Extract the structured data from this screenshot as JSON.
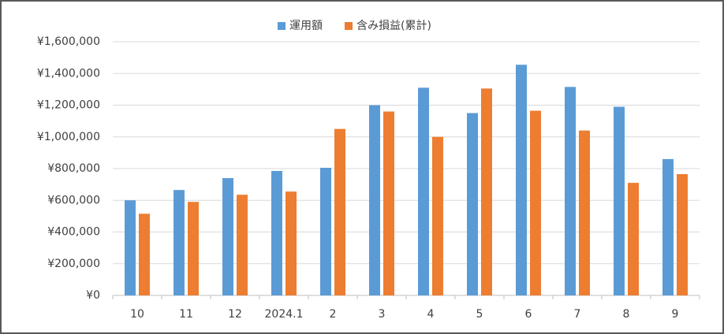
{
  "chart_data": {
    "type": "bar",
    "categories": [
      "10",
      "11",
      "12",
      "2024.1",
      "2",
      "3",
      "4",
      "5",
      "6",
      "7",
      "8",
      "9"
    ],
    "series": [
      {
        "name": "運用額",
        "color": "#5b9bd5",
        "values": [
          600000,
          665000,
          740000,
          785000,
          805000,
          1200000,
          1310000,
          1150000,
          1455000,
          1315000,
          1190000,
          860000
        ]
      },
      {
        "name": "含み損益(累計)",
        "color": "#ed7d31",
        "values": [
          515000,
          590000,
          635000,
          655000,
          1050000,
          1160000,
          1000000,
          1305000,
          1165000,
          1040000,
          710000,
          765000
        ]
      }
    ],
    "ylim": [
      0,
      1600000
    ],
    "yticks": [
      {
        "value": 0,
        "label": "¥0"
      },
      {
        "value": 200000,
        "label": "¥200,000"
      },
      {
        "value": 400000,
        "label": "¥400,000"
      },
      {
        "value": 600000,
        "label": "¥600,000"
      },
      {
        "value": 800000,
        "label": "¥800,000"
      },
      {
        "value": 1000000,
        "label": "¥1,000,000"
      },
      {
        "value": 1200000,
        "label": "¥1,200,000"
      },
      {
        "value": 1400000,
        "label": "¥1,400,000"
      },
      {
        "value": 1600000,
        "label": "¥1,600,000"
      }
    ],
    "grid": true,
    "legend": "top"
  }
}
